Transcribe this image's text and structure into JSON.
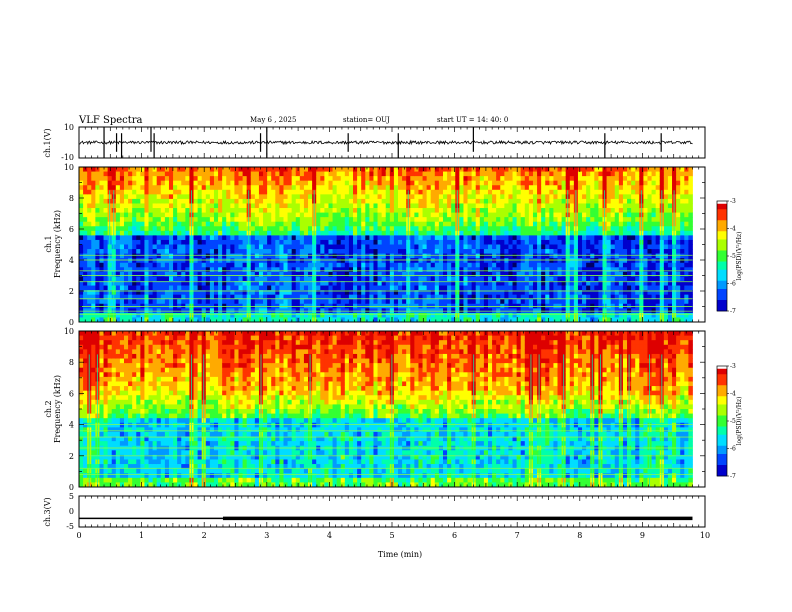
{
  "header": {
    "title": "VLF Spectra",
    "date": "May 6  , 2025",
    "station": "station= OUJ",
    "start": "start  UT  =   14: 40: 0"
  },
  "colors": {
    "spectrogram_scale": [
      "#000066",
      "#0000cc",
      "#0044ff",
      "#0099ff",
      "#00ddff",
      "#00ffaa",
      "#33ff33",
      "#aaff00",
      "#ffff00",
      "#ffaa00",
      "#ff3300",
      "#dd0000"
    ],
    "trace": "#000000",
    "line_artifacts": "#88ff44"
  },
  "chart_data": [
    {
      "type": "line",
      "name": "ch1-waveform",
      "ylabel": "ch.1(V)",
      "ylim": [
        -10,
        10
      ],
      "yticks": [
        "10",
        "-10"
      ],
      "xlim": [
        0,
        10
      ],
      "baseline": 0,
      "noise_amplitude": 1,
      "spike_times": [
        0.4,
        0.6,
        0.68,
        1.15,
        1.2,
        2.9,
        3.0,
        4.3,
        5.1,
        6.3,
        8.4,
        9.3
      ]
    },
    {
      "type": "heatmap",
      "name": "ch1-spectrogram",
      "ylabel_top": "ch.1",
      "ylabel": "Frequency (kHz)",
      "ylim": [
        0,
        10
      ],
      "yticks": [
        "0",
        "2",
        "4",
        "6",
        "8",
        "10"
      ],
      "xlim": [
        0,
        10
      ],
      "colorbar": {
        "label": "log(PSD)(V²/Hz)",
        "range": [
          -7,
          -3
        ],
        "ticks": [
          "-3",
          "-4",
          "-5",
          "-6",
          "-7"
        ]
      },
      "dark_band_kHz": [
        0,
        5.5
      ],
      "line_frequencies_kHz": [
        0.5,
        0.7,
        1.0,
        1.5,
        2.0,
        2.6,
        3.0,
        3.3,
        4.0,
        4.3
      ]
    },
    {
      "type": "heatmap",
      "name": "ch2-spectrogram",
      "ylabel_top": "ch.2",
      "ylabel": "Frequency (kHz)",
      "ylim": [
        0,
        10
      ],
      "yticks": [
        "0",
        "2",
        "4",
        "6",
        "8",
        "10"
      ],
      "xlim": [
        0,
        10
      ],
      "colorbar": {
        "label": "log(PSD)(V²/Hz)",
        "range": [
          -7,
          -3
        ],
        "ticks": [
          "-3",
          "-4",
          "-5",
          "-6",
          "-7"
        ]
      },
      "hot_band_kHz": [
        6,
        10
      ],
      "line_frequencies_kHz": [
        0.8,
        1.2,
        2.0,
        2.5,
        3.2,
        3.6,
        4.0
      ]
    },
    {
      "type": "line",
      "name": "ch3-waveform",
      "ylabel": "ch.3(V)",
      "ylim": [
        -5,
        5
      ],
      "yticks": [
        "5",
        "0",
        "-5"
      ],
      "xlim": [
        0,
        10
      ],
      "xlabel": "Time  (min)",
      "xticks": [
        "0",
        "1",
        "2",
        "3",
        "4",
        "5",
        "6",
        "7",
        "8",
        "9",
        "10"
      ],
      "level_V": -2.2,
      "thick_from_min": 2.3,
      "end_min": 9.8
    }
  ]
}
